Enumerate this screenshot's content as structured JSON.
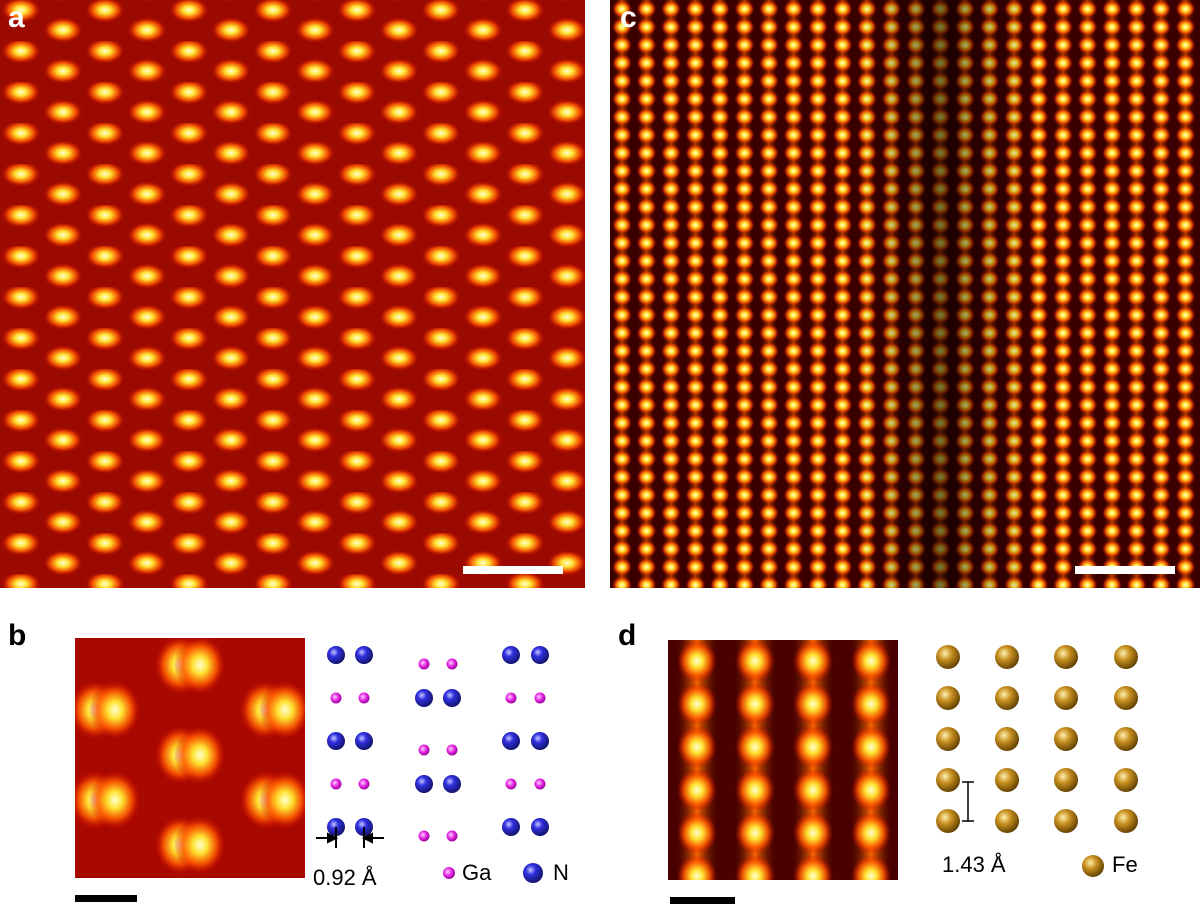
{
  "panel_a": {
    "label": "a"
  },
  "panel_b": {
    "label": "b",
    "distance": "0.92 Å",
    "legend": [
      "Ga",
      "N"
    ]
  },
  "panel_c": {
    "label": "c"
  },
  "panel_d": {
    "label": "d",
    "distance": "1.43 Å",
    "legend": [
      "Fe"
    ]
  }
}
